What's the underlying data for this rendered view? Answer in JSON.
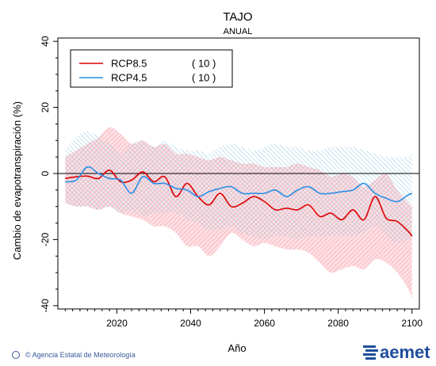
{
  "chart_data": {
    "type": "line",
    "title": "TAJO",
    "subtitle": "ANUAL",
    "xlabel": "Año",
    "ylabel": "Cambio de evapotranspiración (%)",
    "xlim": [
      2004,
      2102
    ],
    "ylim": [
      -41,
      41
    ],
    "xticks": [
      2020,
      2040,
      2060,
      2080,
      2100
    ],
    "yticks": [
      -40,
      -20,
      0,
      20,
      40
    ],
    "legend_placement": "top-left",
    "zero_line": true,
    "x": [
      2006,
      2009,
      2012,
      2015,
      2018,
      2021,
      2024,
      2027,
      2030,
      2033,
      2036,
      2039,
      2042,
      2045,
      2048,
      2051,
      2054,
      2057,
      2060,
      2063,
      2066,
      2069,
      2072,
      2075,
      2078,
      2081,
      2084,
      2087,
      2090,
      2093,
      2096,
      2099,
      2100
    ],
    "series": [
      {
        "name": "RCP8.5",
        "count": "( 10 )",
        "color": "#dd0000",
        "band_color": "#f5a3ad",
        "values": [
          -1.5,
          -1,
          -0.8,
          -1.5,
          1,
          -2.5,
          -2,
          0.5,
          -2.5,
          -1,
          -7,
          -3,
          -7,
          -9.5,
          -6,
          -10,
          -9,
          -7,
          -8.5,
          -11,
          -10.5,
          -11,
          -9.5,
          -13,
          -12,
          -14,
          -11,
          -14,
          -7,
          -13.5,
          -14.5,
          -17.5,
          -19
        ],
        "upper": [
          5,
          7,
          9,
          11,
          14,
          12,
          9,
          10,
          8,
          9,
          6,
          6,
          5,
          4,
          5,
          4,
          3,
          3,
          2,
          2,
          2,
          3,
          2,
          1,
          -1,
          0,
          -1,
          -4,
          -2,
          0,
          -5,
          -9,
          -10
        ],
        "lower": [
          -9,
          -10,
          -10,
          -11,
          -10,
          -12,
          -13,
          -14,
          -16,
          -16,
          -18,
          -22,
          -22,
          -25,
          -22,
          -18,
          -20,
          -22,
          -21,
          -22,
          -23,
          -23,
          -24,
          -27,
          -30,
          -29,
          -28,
          -29,
          -26,
          -27,
          -30,
          -35,
          -38
        ]
      },
      {
        "name": "RCP4.5",
        "count": "( 10 )",
        "color": "#2a8ee6",
        "band_color": "#a9d5e4",
        "values": [
          -2.5,
          -2,
          2,
          0,
          -1.5,
          -2,
          -6,
          -1,
          -3,
          -3,
          -4.5,
          -5,
          -7,
          -5.5,
          -4.5,
          -4,
          -6,
          -6,
          -6,
          -5,
          -7,
          -5,
          -4,
          -6,
          -6,
          -5.5,
          -5,
          -3,
          -6,
          -7.5,
          -8.5,
          -6.5,
          -6
        ],
        "upper": [
          7,
          11,
          13,
          11,
          9,
          6,
          9,
          10,
          8,
          10,
          8,
          7,
          7,
          6,
          8,
          9,
          8,
          7,
          8,
          9,
          8,
          8,
          7,
          7,
          8,
          8,
          8,
          7,
          6,
          5,
          5,
          5,
          6
        ],
        "lower": [
          -9,
          -10,
          -10,
          -11,
          -10,
          -12,
          -11,
          -13,
          -12,
          -12,
          -12,
          -14,
          -15,
          -17,
          -17,
          -16,
          -18,
          -19,
          -20,
          -19,
          -19,
          -20,
          -19,
          -19,
          -19,
          -19,
          -19,
          -18,
          -16,
          -19,
          -21,
          -20,
          -20
        ]
      }
    ]
  },
  "footer": {
    "credit": "© Agencia Estatal de Meteorología",
    "logo_text": "aemet"
  },
  "colors": {
    "logo_blue": "#1f4e9c",
    "frame": "#000000"
  }
}
